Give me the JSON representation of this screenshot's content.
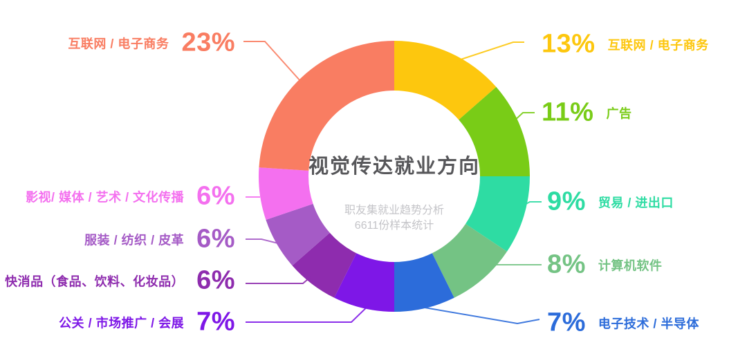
{
  "chart_data": {
    "type": "donut",
    "title": "视觉传达就业方向",
    "subtitle_lines": [
      "职友集就业趋势分析",
      "6611份样本统计"
    ],
    "unit": "%",
    "background_color": "#ffffff",
    "title_color": "#57575a",
    "subtitle_color": "#c4c4c8",
    "legend_position": "both-sides",
    "segments": [
      {
        "label": "互联网 / 电子商务",
        "value": 13,
        "display": "13%",
        "color": "#fdc70e",
        "side": "right"
      },
      {
        "label": "广告",
        "value": 11,
        "display": "11%",
        "color": "#79cc17",
        "side": "right"
      },
      {
        "label": "贸易 / 进出口",
        "value": 9,
        "display": "9%",
        "color": "#2edca3",
        "side": "right"
      },
      {
        "label": "计算机软件",
        "value": 8,
        "display": "8%",
        "color": "#74c384",
        "side": "right"
      },
      {
        "label": "电子技术 / 半导体",
        "value": 7,
        "display": "7%",
        "color": "#2c6cda",
        "side": "right"
      },
      {
        "label": "公关 / 市场推广 / 会展",
        "value": 7,
        "display": "7%",
        "color": "#7e17e7",
        "side": "left"
      },
      {
        "label": "快消品（食品、饮料、化妆品）",
        "value": 6,
        "display": "6%",
        "color": "#8e2cae",
        "side": "left"
      },
      {
        "label": "服装 / 纺织 / 皮革",
        "value": 6,
        "display": "6%",
        "color": "#a55bc6",
        "side": "left"
      },
      {
        "label": "影视/ 媒体 / 艺术 / 文化传播",
        "value": 6,
        "display": "6%",
        "color": "#f470ef",
        "side": "left"
      },
      {
        "label": "互联网 / 电子商务",
        "value": 23,
        "display": "23%",
        "color": "#f97d62",
        "side": "left"
      }
    ]
  }
}
